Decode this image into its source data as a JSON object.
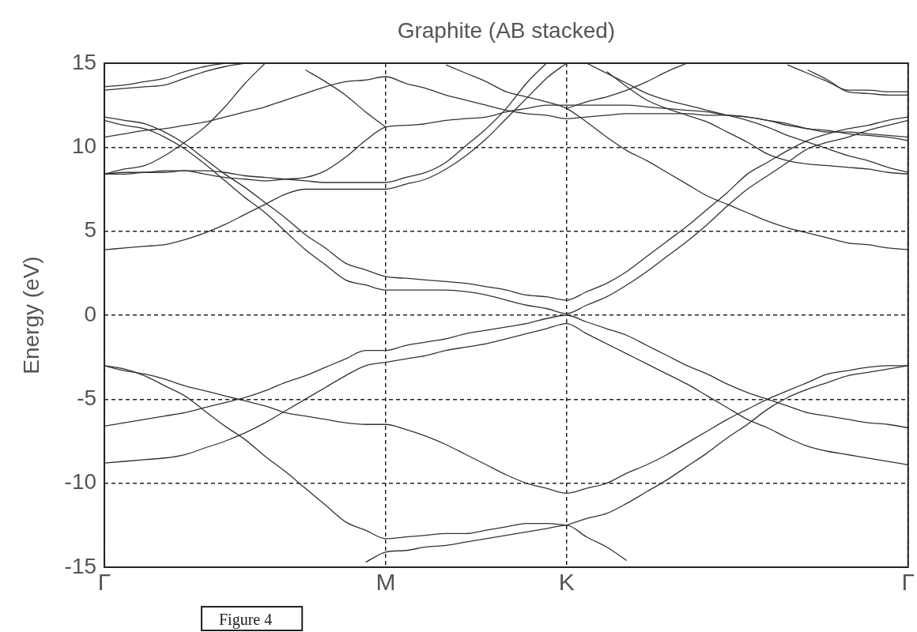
{
  "chart_data": {
    "type": "line",
    "title": "Graphite (AB stacked)",
    "ylabel": "Energy (eV)",
    "categories": [
      "Γ",
      null,
      null,
      null,
      null,
      null,
      null,
      null,
      null,
      null,
      null,
      null,
      null,
      null,
      "M",
      null,
      null,
      null,
      null,
      null,
      null,
      null,
      null,
      "K",
      null,
      null,
      null,
      null,
      null,
      null,
      null,
      null,
      null,
      null,
      null,
      null,
      null,
      null,
      null,
      null,
      "Γ"
    ],
    "ylim": [
      -15,
      15
    ],
    "yticks": [
      -15,
      -10,
      -5,
      0,
      5,
      10,
      15
    ],
    "grid": true,
    "legend": false,
    "annotations": [
      "Figure 4"
    ],
    "series": [
      {
        "color": "#333333",
        "values": [
          -3,
          -3.2,
          -3.6,
          -4.2,
          -4.8,
          -5.7,
          -6.6,
          -7.4,
          -8.4,
          -9.3,
          -10.3,
          -11.3,
          -12.3,
          -12.8,
          -13.3,
          -13.2,
          -13.1,
          -13,
          -13,
          -12.8,
          -12.6,
          -12.4,
          -12.4,
          -12.5,
          null,
          null,
          null,
          null,
          null,
          null,
          null,
          null,
          null,
          null,
          null,
          null,
          null,
          null,
          null,
          null,
          null
        ]
      },
      {
        "color": "#333333",
        "values": [
          null,
          null,
          null,
          null,
          null,
          null,
          null,
          null,
          null,
          null,
          null,
          null,
          null,
          null,
          null,
          null,
          null,
          null,
          null,
          null,
          null,
          null,
          null,
          -12.5,
          -12.1,
          -11.8,
          -11.2,
          -10.5,
          -9.8,
          -9,
          -8.2,
          -7.3,
          -6.5,
          -5.6,
          -4.9,
          -4.4,
          -4,
          -3.6,
          -3.4,
          -3.2,
          -3
        ]
      },
      {
        "color": "#333333",
        "values": [
          -3,
          -3.3,
          -3.5,
          -3.8,
          -4.2,
          -4.5,
          -4.8,
          -5.1,
          -5.4,
          -5.8,
          -6,
          -6.2,
          -6.4,
          -6.5,
          -6.5,
          -6.8,
          -7.2,
          -7.7,
          -8.3,
          -8.9,
          -9.5,
          -10,
          -10.3,
          -10.6,
          -10.3,
          -10,
          -9.4,
          -8.9,
          -8.3,
          -7.6,
          -6.9,
          -6.2,
          -5.6,
          -5,
          -4.5,
          -4,
          -3.5,
          -3.3,
          -3.1,
          -3,
          -3
        ]
      },
      {
        "color": "#333333",
        "values": [
          null,
          null,
          null,
          null,
          null,
          null,
          null,
          null,
          null,
          null,
          null,
          null,
          null,
          -14.7,
          -14.1,
          -14,
          -13.8,
          -13.7,
          -13.5,
          -13.3,
          -13.1,
          -12.9,
          -12.7,
          -12.5,
          -13.2,
          -13.8,
          -14.6,
          null,
          null,
          null,
          null,
          null,
          null,
          null,
          null,
          null,
          null,
          null,
          null,
          null,
          null
        ]
      },
      {
        "color": "#333333",
        "values": [
          -6.6,
          -6.4,
          -6.2,
          -6,
          -5.8,
          -5.5,
          -5.2,
          -4.9,
          -4.5,
          -4,
          -3.6,
          -3.1,
          -2.6,
          -2.1,
          -2.1,
          -1.8,
          -1.6,
          -1.4,
          -1.1,
          -0.9,
          -0.7,
          -0.5,
          -0.2,
          0,
          -0.4,
          -0.8,
          -1.2,
          -1.8,
          -2.4,
          -3,
          -3.5,
          -4.1,
          -4.6,
          -5,
          -5.4,
          -5.8,
          -6,
          -6.2,
          -6.4,
          -6.5,
          -6.7
        ]
      },
      {
        "color": "#333333",
        "values": [
          -8.8,
          -8.7,
          -8.6,
          -8.5,
          -8.3,
          -7.9,
          -7.5,
          -7,
          -6.4,
          -5.7,
          -5,
          -4.3,
          -3.6,
          -3,
          -2.8,
          -2.6,
          -2.4,
          -2.1,
          -1.9,
          -1.7,
          -1.4,
          -1.1,
          -0.8,
          -0.5,
          -1.1,
          -1.7,
          -2.3,
          -2.9,
          -3.5,
          -4.1,
          -4.8,
          -5.5,
          -6.2,
          -6.7,
          -7.3,
          -7.8,
          -8.1,
          -8.3,
          -8.5,
          -8.7,
          -8.9
        ]
      },
      {
        "color": "#333333",
        "values": [
          11.8,
          11.6,
          11.4,
          10.9,
          10.2,
          9.3,
          8.4,
          7.6,
          6.7,
          5.8,
          4.8,
          4,
          3.1,
          2.7,
          2.3,
          2.2,
          2.1,
          2,
          1.9,
          1.7,
          1.5,
          1.2,
          1.1,
          0.9,
          1.4,
          1.9,
          2.6,
          3.5,
          4.4,
          5.3,
          6.3,
          7.3,
          8.4,
          9.1,
          9.8,
          10.4,
          10.8,
          11.1,
          11.3,
          11.6,
          11.8
        ]
      },
      {
        "color": "#333333",
        "values": [
          11.6,
          11.3,
          11.1,
          10.6,
          9.9,
          9,
          8,
          7,
          6.1,
          5,
          3.9,
          3,
          2.1,
          1.8,
          1.5,
          1.5,
          1.5,
          1.5,
          1.4,
          1.2,
          0.9,
          0.6,
          0.4,
          0.1,
          0.6,
          1.1,
          1.8,
          2.6,
          3.5,
          4.4,
          5.4,
          6.5,
          7.5,
          8.3,
          9.1,
          9.9,
          10.3,
          10.6,
          11,
          11.3,
          11.6
        ]
      },
      {
        "color": "#333333",
        "values": [
          3.9,
          4,
          4.1,
          4.2,
          4.5,
          4.9,
          5.4,
          6,
          6.6,
          7.2,
          7.5,
          7.5,
          7.5,
          7.5,
          7.5,
          7.8,
          8.1,
          8.7,
          9.5,
          10.5,
          11.7,
          12.9,
          14.1,
          15,
          null,
          null,
          null,
          null,
          null,
          null,
          null,
          null,
          null,
          null,
          null,
          null,
          null,
          null,
          null,
          null,
          null
        ]
      },
      {
        "color": "#333333",
        "values": [
          8.4,
          8.4,
          8.5,
          8.5,
          8.6,
          8.6,
          8.5,
          8.3,
          8.2,
          8.1,
          8,
          7.9,
          7.9,
          7.9,
          7.9,
          8.2,
          8.5,
          9.1,
          10.1,
          11.1,
          12.3,
          13.8,
          15,
          null,
          null,
          null,
          null,
          null,
          null,
          null,
          null,
          null,
          null,
          null,
          null,
          null,
          null,
          null,
          null,
          null,
          null
        ]
      },
      {
        "color": "#333333",
        "values": [
          8.4,
          8.5,
          8.5,
          8.6,
          8.6,
          8.4,
          8.2,
          8.1,
          8,
          8.1,
          8.2,
          8.6,
          9.4,
          10.4,
          11.2,
          11.3,
          11.4,
          11.6,
          11.7,
          11.8,
          12.1,
          12.3,
          12.5,
          12.5,
          12.5,
          12.5,
          12.5,
          12.4,
          12.3,
          12.2,
          12.1,
          11.9,
          11.8,
          11.6,
          11.3,
          11.1,
          10.9,
          10.9,
          10.8,
          10.7,
          10.6
        ]
      },
      {
        "color": "#333333",
        "values": [
          8.4,
          8.7,
          8.9,
          9.5,
          10.3,
          11.2,
          12.4,
          13.8,
          15,
          null,
          null,
          null,
          null,
          null,
          null,
          null,
          null,
          null,
          null,
          null,
          null,
          null,
          null,
          null,
          null,
          null,
          null,
          null,
          null,
          null,
          null,
          null,
          null,
          null,
          null,
          null,
          null,
          null,
          null,
          null,
          null
        ]
      },
      {
        "color": "#333333",
        "values": [
          null,
          null,
          null,
          null,
          null,
          null,
          null,
          null,
          null,
          null,
          14.6,
          13.9,
          13.1,
          12.1,
          11.2,
          null,
          null,
          null,
          null,
          null,
          null,
          null,
          null,
          null,
          null,
          null,
          null,
          null,
          null,
          null,
          null,
          null,
          null,
          null,
          null,
          null,
          null,
          null,
          null,
          null,
          null
        ]
      },
      {
        "color": "#333333",
        "values": [
          10.6,
          10.8,
          11,
          11.1,
          11.3,
          11.5,
          11.8,
          12.1,
          12.4,
          12.8,
          13.2,
          13.6,
          13.9,
          14,
          14.2,
          13.8,
          13.5,
          13.1,
          12.8,
          12.5,
          12.2,
          12,
          11.9,
          11.7,
          11.8,
          11.9,
          12,
          12,
          12,
          12,
          11.9,
          11.9,
          11.8,
          11.6,
          11.4,
          11.1,
          11,
          10.8,
          10.7,
          10.6,
          10.4
        ]
      },
      {
        "color": "#333333",
        "values": [
          null,
          null,
          null,
          null,
          null,
          null,
          null,
          null,
          null,
          null,
          null,
          null,
          null,
          null,
          null,
          null,
          null,
          14.9,
          14.4,
          13.9,
          13.3,
          13,
          12.7,
          12.3,
          11.5,
          10.6,
          9.8,
          9.2,
          8.5,
          7.8,
          7.1,
          6.6,
          6.1,
          5.6,
          5.2,
          4.9,
          4.6,
          4.3,
          4.2,
          4,
          3.9
        ]
      },
      {
        "color": "#333333",
        "values": [
          null,
          null,
          null,
          null,
          null,
          null,
          null,
          null,
          null,
          null,
          null,
          null,
          null,
          null,
          null,
          null,
          null,
          null,
          null,
          null,
          null,
          null,
          null,
          12.3,
          12.7,
          13,
          13.4,
          13.9,
          14.5,
          15,
          null,
          null,
          null,
          null,
          null,
          null,
          null,
          null,
          null,
          null,
          null
        ]
      },
      {
        "color": "#333333",
        "values": [
          null,
          null,
          null,
          null,
          null,
          null,
          null,
          null,
          null,
          null,
          null,
          null,
          null,
          null,
          null,
          null,
          null,
          null,
          null,
          null,
          null,
          null,
          null,
          null,
          15,
          14.4,
          13.8,
          13.2,
          12.8,
          12.5,
          12.2,
          11.9,
          11.6,
          11.2,
          10.7,
          10.3,
          9.9,
          9.5,
          9.2,
          8.8,
          8.5
        ]
      },
      {
        "color": "#333333",
        "values": [
          null,
          null,
          null,
          null,
          null,
          null,
          null,
          null,
          null,
          null,
          null,
          null,
          null,
          null,
          null,
          null,
          null,
          null,
          null,
          null,
          null,
          null,
          null,
          null,
          null,
          14.5,
          13.6,
          12.8,
          12.3,
          11.9,
          11.5,
          10.9,
          10.3,
          9.6,
          9.2,
          9,
          8.9,
          8.8,
          8.7,
          8.5,
          8.4
        ]
      },
      {
        "color": "#333333",
        "values": [
          13.6,
          13.7,
          13.9,
          14.1,
          14.5,
          14.8,
          15,
          null,
          null,
          null,
          null,
          null,
          null,
          null,
          null,
          null,
          null,
          null,
          null,
          null,
          null,
          null,
          null,
          null,
          null,
          null,
          null,
          null,
          null,
          null,
          null,
          null,
          null,
          null,
          null,
          null,
          null,
          null,
          null,
          null,
          null
        ]
      },
      {
        "color": "#333333",
        "values": [
          13.4,
          13.5,
          13.6,
          13.7,
          14.1,
          14.5,
          14.8,
          15,
          null,
          null,
          null,
          null,
          null,
          null,
          null,
          null,
          null,
          null,
          null,
          null,
          null,
          null,
          null,
          null,
          null,
          null,
          null,
          null,
          null,
          null,
          null,
          null,
          null,
          null,
          null,
          null,
          null,
          null,
          null,
          null,
          null
        ]
      },
      {
        "color": "#333333",
        "values": [
          null,
          null,
          null,
          null,
          null,
          null,
          null,
          null,
          null,
          null,
          null,
          null,
          null,
          null,
          null,
          null,
          null,
          null,
          null,
          null,
          null,
          null,
          null,
          null,
          null,
          null,
          null,
          null,
          null,
          null,
          null,
          null,
          null,
          null,
          14.9,
          14.4,
          13.9,
          13.4,
          13.4,
          13.3,
          13.3
        ]
      },
      {
        "color": "#333333",
        "values": [
          null,
          null,
          null,
          null,
          null,
          null,
          null,
          null,
          null,
          null,
          null,
          null,
          null,
          null,
          null,
          null,
          null,
          null,
          null,
          null,
          null,
          null,
          null,
          null,
          null,
          null,
          null,
          null,
          null,
          null,
          null,
          null,
          null,
          null,
          null,
          14.6,
          14,
          13.3,
          13.2,
          13.1,
          13.1
        ]
      }
    ]
  }
}
